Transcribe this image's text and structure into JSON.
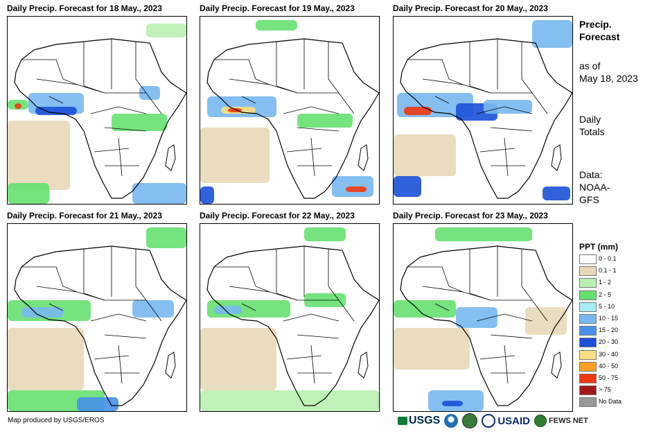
{
  "panels": [
    {
      "title": "Daily Precip. Forecast for 18 May., 2023"
    },
    {
      "title": "Daily Precip. Forecast for 19 May., 2023"
    },
    {
      "title": "Daily Precip. Forecast for 20 May., 2023"
    },
    {
      "title": "Daily Precip. Forecast for 21 May., 2023"
    },
    {
      "title": "Daily Precip. Forecast for 22 May., 2023"
    },
    {
      "title": "Daily Precip. Forecast for 23 May., 2023"
    }
  ],
  "sidebar": {
    "title_line1": "Precip.",
    "title_line2": "Forecast",
    "asof_line1": "as of",
    "asof_line2": "May 18, 2023",
    "totals_line1": "Daily",
    "totals_line2": "Totals",
    "data_line1": "Data:",
    "data_line2": "NOAA-",
    "data_line3": "GFS"
  },
  "legend": {
    "title": "PPT (mm)",
    "items": [
      {
        "label": "0 - 0.1",
        "color": "#ffffff"
      },
      {
        "label": "0.1 - 1",
        "color": "#e8d8b8"
      },
      {
        "label": "1 - 2",
        "color": "#b8f0b0"
      },
      {
        "label": "2 - 5",
        "color": "#66e070"
      },
      {
        "label": "5 - 10",
        "color": "#a8ecf4"
      },
      {
        "label": "10 - 15",
        "color": "#78b8f0"
      },
      {
        "label": "15 - 20",
        "color": "#4890e8"
      },
      {
        "label": "20 - 30",
        "color": "#1c50d8"
      },
      {
        "label": "30 - 40",
        "color": "#f8e080"
      },
      {
        "label": "40 - 50",
        "color": "#f8a020"
      },
      {
        "label": "50 - 75",
        "color": "#f03810"
      },
      {
        "label": "> 75",
        "color": "#a01818"
      },
      {
        "label": "No Data",
        "color": "#999999"
      }
    ]
  },
  "footer": {
    "credit": "Map produced by USGS/EROS",
    "logos": [
      "USGS",
      "USAID",
      "FEWS NET"
    ]
  }
}
